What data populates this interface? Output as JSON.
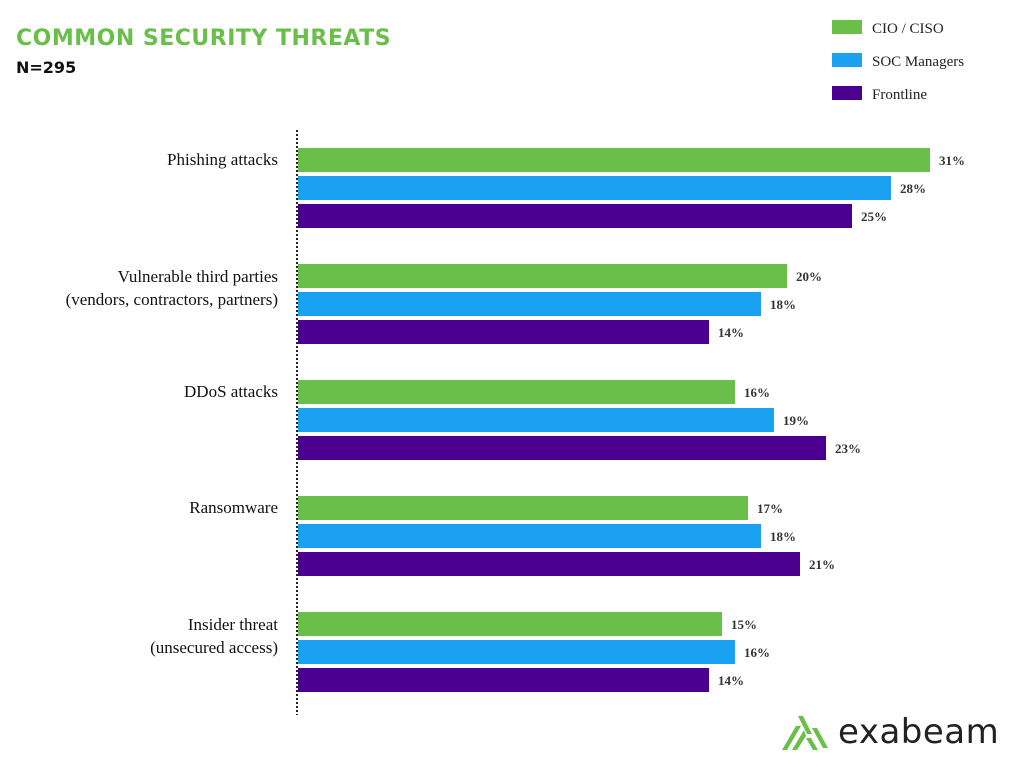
{
  "chart_data": {
    "type": "bar",
    "orientation": "horizontal",
    "title": "COMMON SECURITY THREATS",
    "subtitle": "N=295",
    "categories": [
      [
        "Phishing attacks"
      ],
      [
        "Vulnerable third parties",
        "(vendors, contractors, partners)"
      ],
      [
        "DDoS attacks"
      ],
      [
        "Ransomware"
      ],
      [
        "Insider threat",
        "(unsecured access)"
      ]
    ],
    "series": [
      {
        "name": "CIO / CISO",
        "color": "#6abf4b",
        "values": [
          31,
          20,
          16,
          17,
          15
        ]
      },
      {
        "name": "SOC Managers",
        "color": "#1ba1f2",
        "values": [
          28,
          18,
          19,
          18,
          16
        ]
      },
      {
        "name": "Frontline",
        "color": "#4b0090",
        "values": [
          25,
          14,
          23,
          21,
          14
        ]
      }
    ],
    "value_suffix": "%",
    "legend_position": "top-right",
    "grid": false
  },
  "logo": {
    "text": "exabeam",
    "color": "#6abf4b"
  }
}
